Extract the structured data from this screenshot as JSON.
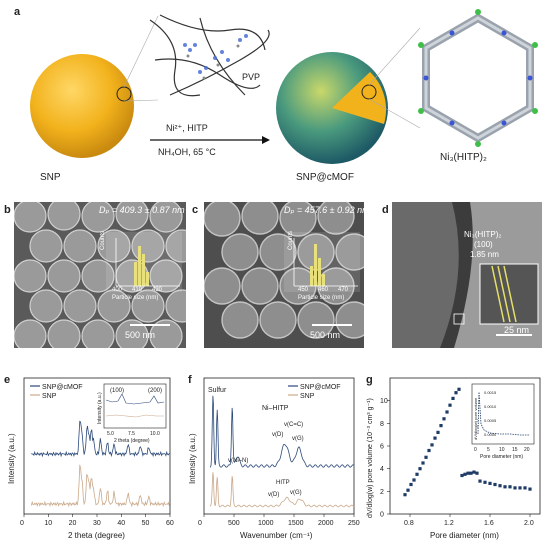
{
  "panel_a": {
    "letter": "a",
    "polymer_label": "PVP",
    "reagents_line1": "Ni²⁺, HITP",
    "reagents_line2": "NH₄OH, 65 °C",
    "left_label": "SNP",
    "middle_label": "SNP@cMOF",
    "right_label": "Ni₃(HITP)₂",
    "colors": {
      "snp": "#f2b21c",
      "mof_shell": "#2f8a7a",
      "arrow": "#111111"
    }
  },
  "panel_b": {
    "letter": "b",
    "diameter": "Dₚ = 409.3 ± 0.87 nm",
    "inset_ylabel": "Counts",
    "inset_xlabel": "Particle size (nm)",
    "inset_ticks": [
      "400",
      "410",
      "420"
    ],
    "scalebar": "500 nm"
  },
  "panel_c": {
    "letter": "c",
    "diameter": "Dₚ = 457.6 ± 0.92 nm",
    "inset_ylabel": "Counts",
    "inset_xlabel": "Particle size (nm)",
    "inset_ticks": [
      "450",
      "460",
      "470"
    ],
    "scalebar": "500 nm"
  },
  "panel_d": {
    "letter": "d",
    "label_line1": "Ni₃(HITP)₂",
    "label_line2": "(100)",
    "label_line3": "1.85 nm",
    "scalebar": "25 nm"
  },
  "panel_e": {
    "letter": "e",
    "chart_data": {
      "type": "line",
      "xlabel": "2 theta (degree)",
      "ylabel": "Intensity (a.u.)",
      "xlim": [
        0,
        60
      ],
      "xticks": [
        "0",
        "10",
        "20",
        "30",
        "40",
        "50",
        "60"
      ],
      "series": [
        {
          "name": "SNP@cMOF",
          "color": "#2c4a7a"
        },
        {
          "name": "SNP",
          "color": "#caa98a"
        }
      ],
      "inset": {
        "xlabel": "2 theta (degree)",
        "ylabel": "Intensity (a.u.)",
        "xticks": [
          "5.0",
          "7.5",
          "10.0"
        ],
        "peaks": [
          "(100)",
          "(200)"
        ]
      }
    }
  },
  "panel_f": {
    "letter": "f",
    "chart_data": {
      "type": "line",
      "xlabel": "Wavenumber (cm⁻¹)",
      "ylabel": "Intensity (a.u.)",
      "xlim": [
        0,
        2500
      ],
      "xticks": [
        "0",
        "500",
        "1000",
        "1500",
        "2000",
        "2500"
      ],
      "series": [
        {
          "name": "SNP@cMOF",
          "color": "#2c4a7a"
        },
        {
          "name": "SNP",
          "color": "#caa98a"
        }
      ],
      "annotations": [
        "Sulfur",
        "Ni–HITP",
        "v(C=C)",
        "v(D)",
        "v(G)",
        "v(Ni–N)",
        "HITP",
        "v(D)",
        "v(G)"
      ]
    }
  },
  "panel_g": {
    "letter": "g",
    "chart_data": {
      "type": "scatter",
      "xlabel": "Pore diameter (nm)",
      "ylabel": "dV/dlog(w) pore volume (10⁻³ cm³ g⁻¹)",
      "xlim": [
        0.6,
        2.1
      ],
      "ylim": [
        0,
        12
      ],
      "xticks": [
        "0.8",
        "1.2",
        "1.6",
        "2.0"
      ],
      "yticks": [
        "0",
        "2",
        "4",
        "6",
        "8",
        "10"
      ],
      "x": [
        0.75,
        0.78,
        0.81,
        0.84,
        0.87,
        0.9,
        0.93,
        0.96,
        0.99,
        1.02,
        1.05,
        1.08,
        1.11,
        1.14,
        1.17,
        1.2,
        1.23,
        1.26,
        1.29,
        1.32,
        1.35,
        1.38,
        1.41,
        1.44,
        1.47,
        1.5,
        1.55,
        1.6,
        1.65,
        1.7,
        1.75,
        1.8,
        1.85,
        1.9,
        1.95,
        2.0
      ],
      "y": [
        1.7,
        2.1,
        2.6,
        3.0,
        3.5,
        4.0,
        4.5,
        5.0,
        5.6,
        6.1,
        6.7,
        7.2,
        7.8,
        8.4,
        9.0,
        9.6,
        10.2,
        10.7,
        11.0,
        3.4,
        3.5,
        3.6,
        3.6,
        3.7,
        3.6,
        2.9,
        2.8,
        2.7,
        2.6,
        2.5,
        2.4,
        2.4,
        2.3,
        2.3,
        2.3,
        2.2
      ],
      "color": "#1f3b66",
      "inset": {
        "xlabel": "Pore diameter (nm)",
        "ylabel": "dV/dlog(w) pore volume",
        "xticks": [
          "0",
          "5",
          "10",
          "15",
          "20"
        ],
        "yticks": [
          "0.0000",
          "0.0005",
          "0.0010",
          "0.0015"
        ]
      }
    }
  }
}
